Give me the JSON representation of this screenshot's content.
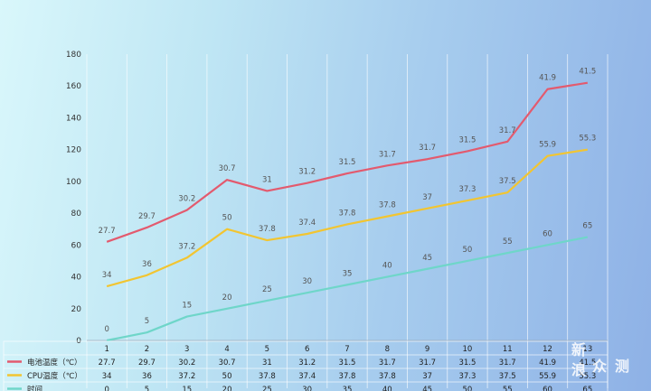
{
  "chart_data": {
    "type": "line",
    "categories": [
      "1",
      "2",
      "3",
      "4",
      "5",
      "6",
      "7",
      "8",
      "9",
      "10",
      "11",
      "12",
      "13"
    ],
    "ylim": [
      0,
      180
    ],
    "yticks": [
      0,
      20,
      40,
      60,
      80,
      100,
      120,
      140,
      160,
      180
    ],
    "grid": true,
    "legend": "data-table",
    "series": [
      {
        "name": "电池温度（℃）",
        "color": "#e35a6e",
        "plot_values": [
          62,
          71,
          82,
          101,
          94,
          99,
          105,
          110,
          114,
          119,
          125,
          158,
          162
        ],
        "labels": [
          "27.7",
          "29.7",
          "30.2",
          "30.7",
          "31",
          "31.2",
          "31.5",
          "31.7",
          "31.7",
          "31.5",
          "31.7",
          "41.9",
          "41.5"
        ]
      },
      {
        "name": "CPU温度（℃）",
        "color": "#f2c531",
        "plot_values": [
          34,
          41,
          52,
          70,
          63,
          67,
          73,
          78,
          83,
          88,
          93,
          116,
          120
        ],
        "labels": [
          "34",
          "36",
          "37.2",
          "50",
          "37.8",
          "37.4",
          "37.8",
          "37.8",
          "37",
          "37.3",
          "37.5",
          "55.9",
          "55.3"
        ]
      },
      {
        "name": "时间",
        "color": "#6fd6c9",
        "plot_values": [
          0,
          5,
          15,
          20,
          25,
          30,
          35,
          40,
          45,
          50,
          55,
          60,
          65
        ],
        "labels": [
          "0",
          "5",
          "15",
          "20",
          "25",
          "30",
          "35",
          "40",
          "45",
          "50",
          "55",
          "60",
          "65"
        ]
      }
    ]
  },
  "watermark": {
    "line1": [
      "新",
      "众",
      "测"
    ],
    "line2": [
      "浪"
    ]
  }
}
